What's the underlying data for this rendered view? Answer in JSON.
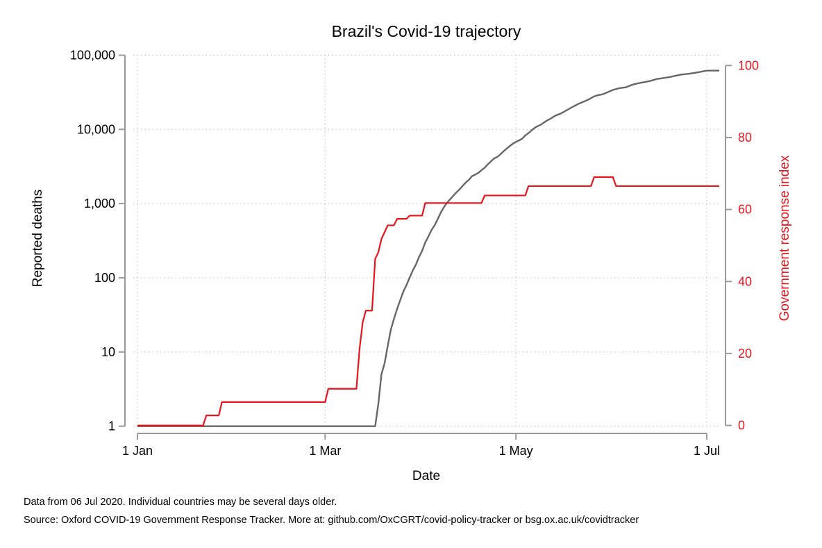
{
  "chart_data": {
    "type": "line",
    "title": "Brazil's Covid-19 trajectory",
    "xlabel": "Date",
    "ylabel_left": "Reported deaths",
    "ylabel_right": "Government response index",
    "x_ticks": [
      {
        "label": "1 Jan",
        "day": 0
      },
      {
        "label": "1 Mar",
        "day": 60
      },
      {
        "label": "1 May",
        "day": 121
      },
      {
        "label": "1 Jul",
        "day": 182
      }
    ],
    "x_range_days": [
      -4,
      188
    ],
    "y_left": {
      "scale": "log",
      "range": [
        0.8,
        120000
      ],
      "ticks": [
        {
          "label": "1",
          "value": 1
        },
        {
          "label": "10",
          "value": 10
        },
        {
          "label": "100",
          "value": 100
        },
        {
          "label": "1,000",
          "value": 1000
        },
        {
          "label": "10,000",
          "value": 10000
        },
        {
          "label": "100,000",
          "value": 100000
        }
      ]
    },
    "y_right": {
      "scale": "linear",
      "range": [
        -2.2,
        104.5
      ],
      "ticks": [
        {
          "label": "0",
          "value": 0
        },
        {
          "label": "20",
          "value": 20
        },
        {
          "label": "40",
          "value": 40
        },
        {
          "label": "60",
          "value": 60
        },
        {
          "label": "80",
          "value": 80
        },
        {
          "label": "100",
          "value": 100
        }
      ]
    },
    "grid": true,
    "colors": {
      "deaths": "#666666",
      "response": "#e8141c",
      "axis": "#999999",
      "grid": "#bbbbbb"
    },
    "series": [
      {
        "axis": "left",
        "style": "smooth",
        "x": [
          0,
          76,
          77,
          78,
          79,
          80,
          81,
          82,
          83,
          84,
          85,
          86,
          87,
          88,
          89,
          90,
          91,
          92,
          93,
          94,
          95,
          96,
          97,
          98,
          99,
          100,
          101,
          102,
          103,
          104,
          105,
          106,
          107,
          108,
          109,
          110,
          111,
          112,
          113,
          114,
          115,
          116,
          117,
          118,
          119,
          120,
          121,
          122,
          123,
          124,
          125,
          126,
          127,
          128,
          129,
          130,
          131,
          132,
          133,
          134,
          135,
          136,
          137,
          138,
          139,
          140,
          141,
          142,
          143,
          144,
          145,
          146,
          147,
          148,
          149,
          150,
          152,
          154,
          156,
          158,
          160,
          162,
          164,
          166,
          168,
          170,
          172,
          174,
          176,
          178,
          180,
          182,
          184,
          186
        ],
        "y": [
          1,
          1,
          2,
          5,
          7,
          12,
          20,
          28,
          38,
          50,
          65,
          80,
          100,
          125,
          150,
          190,
          230,
          300,
          360,
          440,
          510,
          620,
          760,
          900,
          1030,
          1150,
          1280,
          1420,
          1560,
          1740,
          1930,
          2100,
          2350,
          2460,
          2600,
          2820,
          3050,
          3380,
          3700,
          4050,
          4250,
          4600,
          5050,
          5500,
          5950,
          6400,
          6800,
          7100,
          7500,
          8300,
          8900,
          9700,
          10500,
          11100,
          11600,
          12400,
          13200,
          13900,
          14800,
          15600,
          16100,
          16900,
          17900,
          18900,
          20000,
          21000,
          22100,
          23000,
          24000,
          25000,
          26400,
          27800,
          28800,
          29300,
          30000,
          31300,
          34000,
          35900,
          36800,
          39700,
          41800,
          43300,
          45000,
          47700,
          49100,
          50600,
          52800,
          54900,
          56100,
          57600,
          59600,
          61900,
          62000,
          62000
        ]
      },
      {
        "axis": "right",
        "style": "step",
        "x": [
          0,
          21,
          22,
          26,
          27,
          60,
          61,
          70,
          71,
          72,
          73,
          75,
          76,
          77,
          78,
          79,
          80,
          82,
          83,
          86,
          87,
          91,
          92,
          95,
          96,
          110,
          111,
          124,
          125,
          145,
          146,
          152,
          153,
          186
        ],
        "y": [
          0,
          0,
          2.8,
          2.8,
          6.5,
          6.5,
          10.2,
          10.2,
          21.3,
          28.6,
          31.9,
          31.9,
          46.3,
          48.1,
          51.8,
          53.7,
          55.6,
          55.6,
          57.4,
          57.4,
          58.3,
          58.3,
          61.8,
          61.8,
          61.8,
          61.8,
          63.9,
          63.9,
          66.5,
          66.5,
          69,
          69,
          66.5,
          66.5
        ]
      }
    ],
    "notes": [
      "Data from 06 Jul 2020. Individual countries may be several days older.",
      "Source: Oxford COVID-19 Government Response Tracker. More at: github.com/OxCGRT/covid-policy-tracker or bsg.ox.ac.uk/covidtracker"
    ]
  }
}
